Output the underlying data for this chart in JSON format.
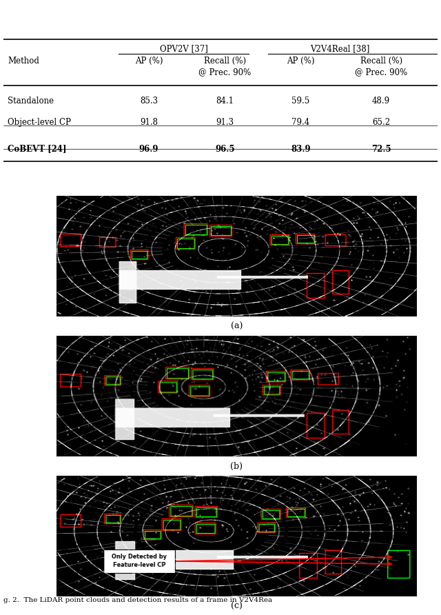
{
  "table": {
    "rows": [
      [
        "Standalone",
        "85.3",
        "84.1",
        "59.5",
        "48.9"
      ],
      [
        "Object-level CP",
        "91.8",
        "91.3",
        "79.4",
        "65.2"
      ],
      [
        "CoBEVT [24]",
        "96.9",
        "96.5",
        "83.9",
        "72.5"
      ]
    ]
  },
  "captions": [
    "(a)",
    "(b)",
    "(c)"
  ],
  "figure_caption": "g. 2.  The LiDAR point clouds and detection results of a frame in V2V4Rea",
  "col_group1": "OPV2V [37]",
  "col_group2": "V2V4Real [38]",
  "method_col": "Method",
  "sub_col1": "AP (%)",
  "sub_col2": "Recall (%)\n@ Prec. 90%",
  "sub_col3": "AP (%)",
  "sub_col4": "Recall (%)\n@ Prec. 90%"
}
